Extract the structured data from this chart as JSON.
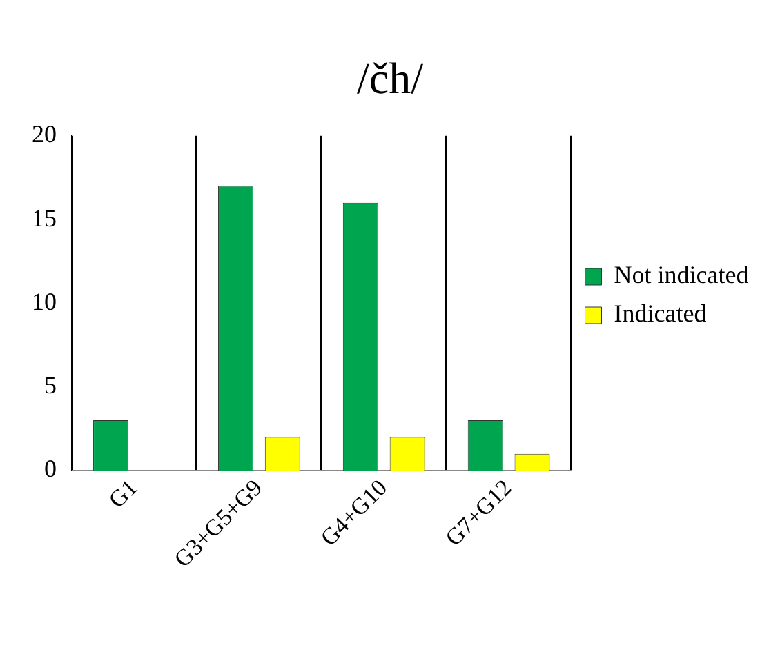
{
  "chart_data": {
    "type": "bar",
    "title": "/čh/",
    "categories": [
      "G1",
      "G3+G5+G9",
      "G4+G10",
      "G7+G12"
    ],
    "series": [
      {
        "name": "Not indicated",
        "color": "#00a550",
        "values": [
          3,
          17,
          16,
          3
        ]
      },
      {
        "name": "Indicated",
        "color": "#ffff00",
        "values": [
          0,
          2,
          2,
          1
        ]
      }
    ],
    "ylim": [
      0,
      20
    ],
    "yticks": [
      0,
      5,
      10,
      15,
      20
    ],
    "grid": "x",
    "legend": "right"
  }
}
